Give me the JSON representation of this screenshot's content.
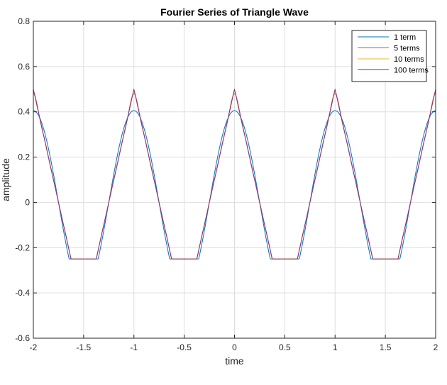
{
  "chart_data": {
    "type": "line",
    "title": "Fourier Series of Triangle Wave",
    "xlabel": "time",
    "ylabel": "amplitude",
    "xlim": [
      -2,
      2
    ],
    "ylim": [
      -0.6,
      0.8
    ],
    "xticks": [
      -2,
      -1.5,
      -1,
      -0.5,
      0,
      0.5,
      1,
      1.5,
      2
    ],
    "xtick_labels": [
      "-2",
      "-1.5",
      "-1",
      "-0.5",
      "0",
      "0.5",
      "1",
      "1.5",
      "2"
    ],
    "yticks": [
      -0.6,
      -0.4,
      -0.2,
      0,
      0.2,
      0.4,
      0.6,
      0.8
    ],
    "ytick_labels": [
      "-0.6",
      "-0.4",
      "-0.2",
      "0",
      "0.2",
      "0.4",
      "0.6",
      "0.8"
    ],
    "grid": true,
    "legend_position": "top-right",
    "series": [
      {
        "name": "1 term",
        "terms": 1,
        "color": "#0072BD"
      },
      {
        "name": "5 terms",
        "terms": 5,
        "color": "#D95319"
      },
      {
        "name": "10 terms",
        "terms": 10,
        "color": "#EDB120"
      },
      {
        "name": "100 terms",
        "terms": 100,
        "color": "#7E2F8E"
      }
    ]
  }
}
